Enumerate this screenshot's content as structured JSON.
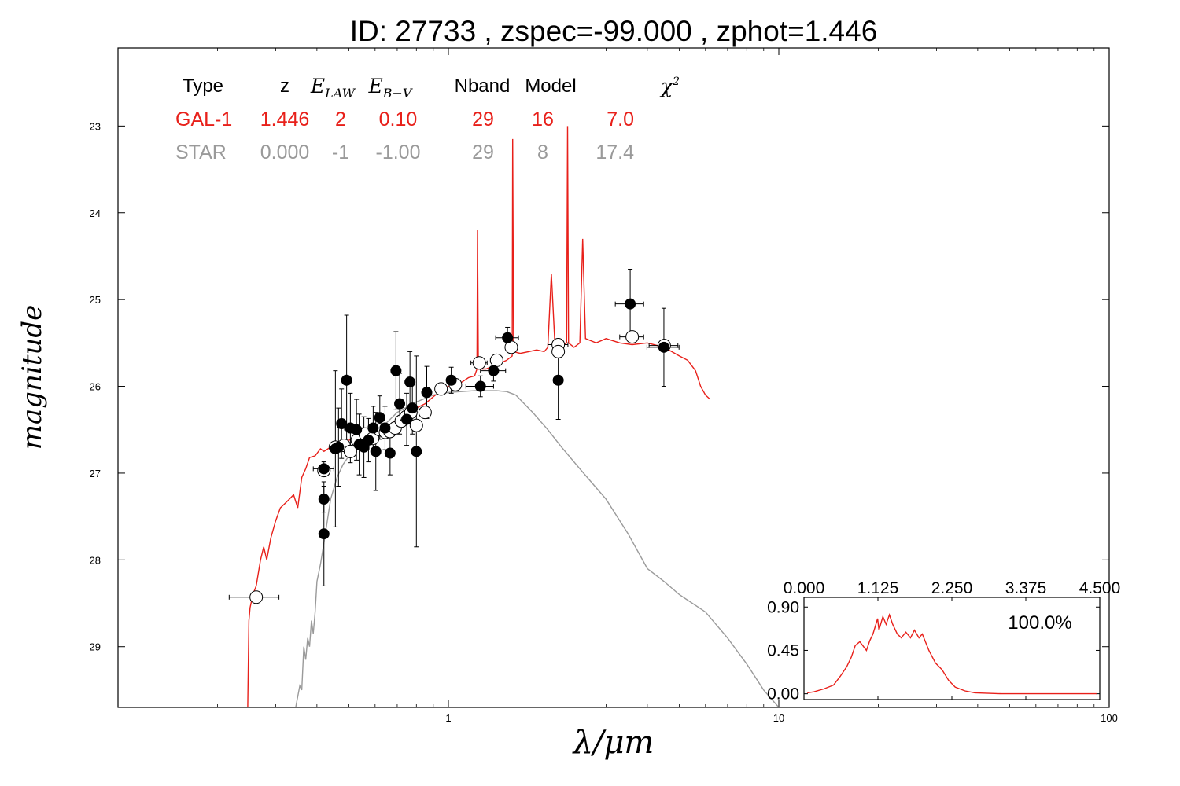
{
  "chart_data": {
    "type": "scatter",
    "title": "ID:  27733 , zspec=-99.000 , zphot=1.446",
    "xlabel": "λ/μm",
    "ylabel": "magnitude",
    "xscale": "log",
    "xlim": [
      0.1,
      100
    ],
    "ylim": [
      29.7,
      22.1
    ],
    "x_ticks": [
      1,
      10,
      100
    ],
    "y_ticks": [
      23,
      24,
      25,
      26,
      27,
      28,
      29
    ],
    "grid": false,
    "info_table": {
      "headers": [
        "Type",
        "z",
        "E_LAW",
        "E_B-V",
        "Nband",
        "Model",
        "χ2"
      ],
      "rows": [
        {
          "name": "GAL-1",
          "color": "#e8201a",
          "values": [
            "GAL-1",
            "1.446",
            "2",
            "0.10",
            "29",
            "16",
            "7.0"
          ]
        },
        {
          "name": "STAR",
          "color": "#9a9a9a",
          "values": [
            "STAR",
            "0.000",
            "-1",
            "-1.00",
            "29",
            "8",
            "17.4"
          ]
        }
      ]
    },
    "series": [
      {
        "name": "GAL-1",
        "role": "model-spectrum",
        "color": "#e8201a",
        "points": [
          [
            0.247,
            29.7
          ],
          [
            0.249,
            28.7
          ],
          [
            0.251,
            28.55
          ],
          [
            0.256,
            28.4
          ],
          [
            0.262,
            28.3
          ],
          [
            0.27,
            28.0
          ],
          [
            0.276,
            27.85
          ],
          [
            0.282,
            28.0
          ],
          [
            0.29,
            27.75
          ],
          [
            0.3,
            27.55
          ],
          [
            0.31,
            27.4
          ],
          [
            0.32,
            27.35
          ],
          [
            0.33,
            27.3
          ],
          [
            0.34,
            27.25
          ],
          [
            0.35,
            27.4
          ],
          [
            0.36,
            27.05
          ],
          [
            0.37,
            26.95
          ],
          [
            0.38,
            26.82
          ],
          [
            0.395,
            26.8
          ],
          [
            0.41,
            26.72
          ],
          [
            0.42,
            26.75
          ],
          [
            0.44,
            26.7
          ],
          [
            0.46,
            26.68
          ],
          [
            0.5,
            26.62
          ],
          [
            0.55,
            26.58
          ],
          [
            0.6,
            26.55
          ],
          [
            0.65,
            26.48
          ],
          [
            0.7,
            26.38
          ],
          [
            0.75,
            26.3
          ],
          [
            0.8,
            26.25
          ],
          [
            0.85,
            26.2
          ],
          [
            0.9,
            26.12
          ],
          [
            0.95,
            26.05
          ],
          [
            1.0,
            26.0
          ],
          [
            1.05,
            25.97
          ],
          [
            1.1,
            25.95
          ],
          [
            1.15,
            25.9
          ],
          [
            1.2,
            25.88
          ],
          [
            1.22,
            25.8
          ],
          [
            1.225,
            24.2
          ],
          [
            1.232,
            25.8
          ],
          [
            1.3,
            25.8
          ],
          [
            1.4,
            25.75
          ],
          [
            1.5,
            25.7
          ],
          [
            1.56,
            25.65
          ],
          [
            1.565,
            23.15
          ],
          [
            1.575,
            25.6
          ],
          [
            1.65,
            25.62
          ],
          [
            1.75,
            25.6
          ],
          [
            1.85,
            25.58
          ],
          [
            1.95,
            25.6
          ],
          [
            2.0,
            25.55
          ],
          [
            2.05,
            24.7
          ],
          [
            2.1,
            25.5
          ],
          [
            2.2,
            25.55
          ],
          [
            2.28,
            25.5
          ],
          [
            2.295,
            23.0
          ],
          [
            2.31,
            25.5
          ],
          [
            2.4,
            25.55
          ],
          [
            2.5,
            25.5
          ],
          [
            2.55,
            24.3
          ],
          [
            2.6,
            25.45
          ],
          [
            2.8,
            25.5
          ],
          [
            3.0,
            25.45
          ],
          [
            3.3,
            25.5
          ],
          [
            3.6,
            25.52
          ],
          [
            4.0,
            25.5
          ],
          [
            4.5,
            25.55
          ],
          [
            5.0,
            25.65
          ],
          [
            5.3,
            25.7
          ],
          [
            5.6,
            25.82
          ],
          [
            5.8,
            26.0
          ],
          [
            6.0,
            26.1
          ],
          [
            6.2,
            26.15
          ]
        ]
      },
      {
        "name": "STAR",
        "role": "model-spectrum",
        "color": "#9a9a9a",
        "points": [
          [
            0.345,
            29.7
          ],
          [
            0.355,
            29.45
          ],
          [
            0.36,
            29.5
          ],
          [
            0.365,
            29.0
          ],
          [
            0.37,
            29.15
          ],
          [
            0.375,
            28.9
          ],
          [
            0.38,
            29.0
          ],
          [
            0.385,
            28.7
          ],
          [
            0.39,
            28.85
          ],
          [
            0.395,
            28.6
          ],
          [
            0.4,
            28.25
          ],
          [
            0.41,
            28.05
          ],
          [
            0.42,
            27.8
          ],
          [
            0.43,
            27.55
          ],
          [
            0.44,
            27.3
          ],
          [
            0.46,
            27.05
          ],
          [
            0.48,
            26.9
          ],
          [
            0.5,
            26.8
          ],
          [
            0.55,
            26.65
          ],
          [
            0.6,
            26.55
          ],
          [
            0.65,
            26.42
          ],
          [
            0.7,
            26.3
          ],
          [
            0.8,
            26.18
          ],
          [
            0.9,
            26.1
          ],
          [
            1.0,
            26.07
          ],
          [
            1.2,
            26.05
          ],
          [
            1.4,
            26.05
          ],
          [
            1.5,
            26.06
          ],
          [
            1.6,
            26.1
          ],
          [
            1.8,
            26.3
          ],
          [
            2.0,
            26.5
          ],
          [
            2.2,
            26.7
          ],
          [
            2.5,
            26.95
          ],
          [
            3.0,
            27.3
          ],
          [
            3.5,
            27.7
          ],
          [
            4.0,
            28.1
          ],
          [
            4.5,
            28.25
          ],
          [
            5.0,
            28.4
          ],
          [
            6.0,
            28.6
          ],
          [
            7.0,
            28.9
          ],
          [
            8.0,
            29.2
          ],
          [
            9.0,
            29.5
          ],
          [
            10.0,
            29.7
          ]
        ]
      },
      {
        "name": "observed",
        "role": "photometry",
        "color": "#000000",
        "points": [
          [
            0.42,
            26.95,
            0.03,
            0.08
          ],
          [
            0.42,
            27.3,
            0.0,
            0.15
          ],
          [
            0.42,
            27.7,
            0.01,
            0.6
          ],
          [
            0.455,
            26.72,
            0.01,
            0.9
          ],
          [
            0.465,
            26.7,
            0.01,
            0.45
          ],
          [
            0.475,
            26.43,
            0.01,
            0.4
          ],
          [
            0.492,
            25.93,
            0.01,
            0.75
          ],
          [
            0.505,
            26.48,
            0.02,
            0.4
          ],
          [
            0.527,
            26.5,
            0.02,
            0.35
          ],
          [
            0.537,
            26.67,
            0.02,
            0.35
          ],
          [
            0.555,
            26.7,
            0.02,
            0.35
          ],
          [
            0.573,
            26.62,
            0.02,
            0.25
          ],
          [
            0.592,
            26.48,
            0.02,
            0.25
          ],
          [
            0.603,
            26.75,
            0.02,
            0.45
          ],
          [
            0.62,
            26.36,
            0.02,
            0.25
          ],
          [
            0.643,
            26.48,
            0.02,
            0.25
          ],
          [
            0.666,
            26.77,
            0.02,
            0.25
          ],
          [
            0.694,
            25.82,
            0.02,
            0.45
          ],
          [
            0.712,
            26.2,
            0.02,
            0.35
          ],
          [
            0.748,
            26.38,
            0.02,
            0.3
          ],
          [
            0.765,
            25.95,
            0.02,
            0.35
          ],
          [
            0.778,
            26.25,
            0.02,
            0.3
          ],
          [
            0.8,
            26.75,
            0.02,
            1.1
          ],
          [
            0.86,
            26.07,
            0.02,
            0.3
          ],
          [
            1.02,
            25.93,
            0.03,
            0.15
          ],
          [
            1.25,
            26.0,
            0.12,
            0.12
          ],
          [
            1.37,
            25.82,
            0.12,
            0.12
          ],
          [
            1.51,
            25.44,
            0.12,
            0.12
          ],
          [
            2.15,
            25.93,
            0.07,
            0.45
          ],
          [
            3.55,
            25.05,
            0.35,
            0.4
          ],
          [
            4.49,
            25.55,
            0.5,
            0.45
          ]
        ]
      },
      {
        "name": "model-magnitudes",
        "role": "predicted",
        "color": "#ffffff",
        "points": [
          [
            0.262,
            28.43,
            0.045
          ],
          [
            0.42,
            26.97,
            0
          ],
          [
            0.455,
            26.7,
            0
          ],
          [
            0.483,
            26.68,
            0
          ],
          [
            0.505,
            26.75,
            0
          ],
          [
            0.53,
            26.62,
            0
          ],
          [
            0.56,
            26.55,
            0
          ],
          [
            0.59,
            26.6,
            0
          ],
          [
            0.62,
            26.5,
            0
          ],
          [
            0.645,
            26.53,
            0
          ],
          [
            0.665,
            26.52,
            0
          ],
          [
            0.69,
            26.48,
            0
          ],
          [
            0.72,
            26.4,
            0
          ],
          [
            0.745,
            26.35,
            0
          ],
          [
            0.77,
            26.3,
            0
          ],
          [
            0.8,
            26.45,
            0
          ],
          [
            0.85,
            26.3,
            0
          ],
          [
            0.95,
            26.03,
            0
          ],
          [
            1.05,
            25.98,
            0
          ],
          [
            1.24,
            25.73,
            0.07
          ],
          [
            1.4,
            25.7,
            0.06
          ],
          [
            1.55,
            25.55,
            0.05
          ],
          [
            2.15,
            25.52,
            0.15
          ],
          [
            2.15,
            25.6,
            0
          ],
          [
            3.6,
            25.43,
            0.3
          ],
          [
            4.5,
            25.53,
            0.45
          ]
        ]
      }
    ],
    "inset": {
      "annotation": "100.0%",
      "x_ticks": [
        "0.000",
        "1.125",
        "2.250",
        "3.375",
        "4.500"
      ],
      "y_ticks": [
        "0.90",
        "0.45",
        "0.00"
      ],
      "xlim": [
        0,
        4.5
      ],
      "ylim": [
        -0.06,
        1.0
      ],
      "color": "#e8201a",
      "points": [
        [
          0.05,
          0.01
        ],
        [
          0.15,
          0.02
        ],
        [
          0.3,
          0.05
        ],
        [
          0.45,
          0.09
        ],
        [
          0.55,
          0.18
        ],
        [
          0.65,
          0.28
        ],
        [
          0.72,
          0.38
        ],
        [
          0.78,
          0.5
        ],
        [
          0.85,
          0.54
        ],
        [
          0.95,
          0.45
        ],
        [
          1.0,
          0.55
        ],
        [
          1.05,
          0.62
        ],
        [
          1.12,
          0.78
        ],
        [
          1.14,
          0.66
        ],
        [
          1.2,
          0.8
        ],
        [
          1.25,
          0.72
        ],
        [
          1.3,
          0.82
        ],
        [
          1.35,
          0.72
        ],
        [
          1.42,
          0.62
        ],
        [
          1.48,
          0.58
        ],
        [
          1.55,
          0.64
        ],
        [
          1.62,
          0.58
        ],
        [
          1.68,
          0.66
        ],
        [
          1.75,
          0.58
        ],
        [
          1.8,
          0.62
        ],
        [
          1.9,
          0.45
        ],
        [
          2.0,
          0.32
        ],
        [
          2.1,
          0.25
        ],
        [
          2.2,
          0.14
        ],
        [
          2.3,
          0.07
        ],
        [
          2.45,
          0.03
        ],
        [
          2.6,
          0.01
        ],
        [
          3.0,
          0.0
        ],
        [
          4.45,
          0.0
        ]
      ]
    }
  }
}
